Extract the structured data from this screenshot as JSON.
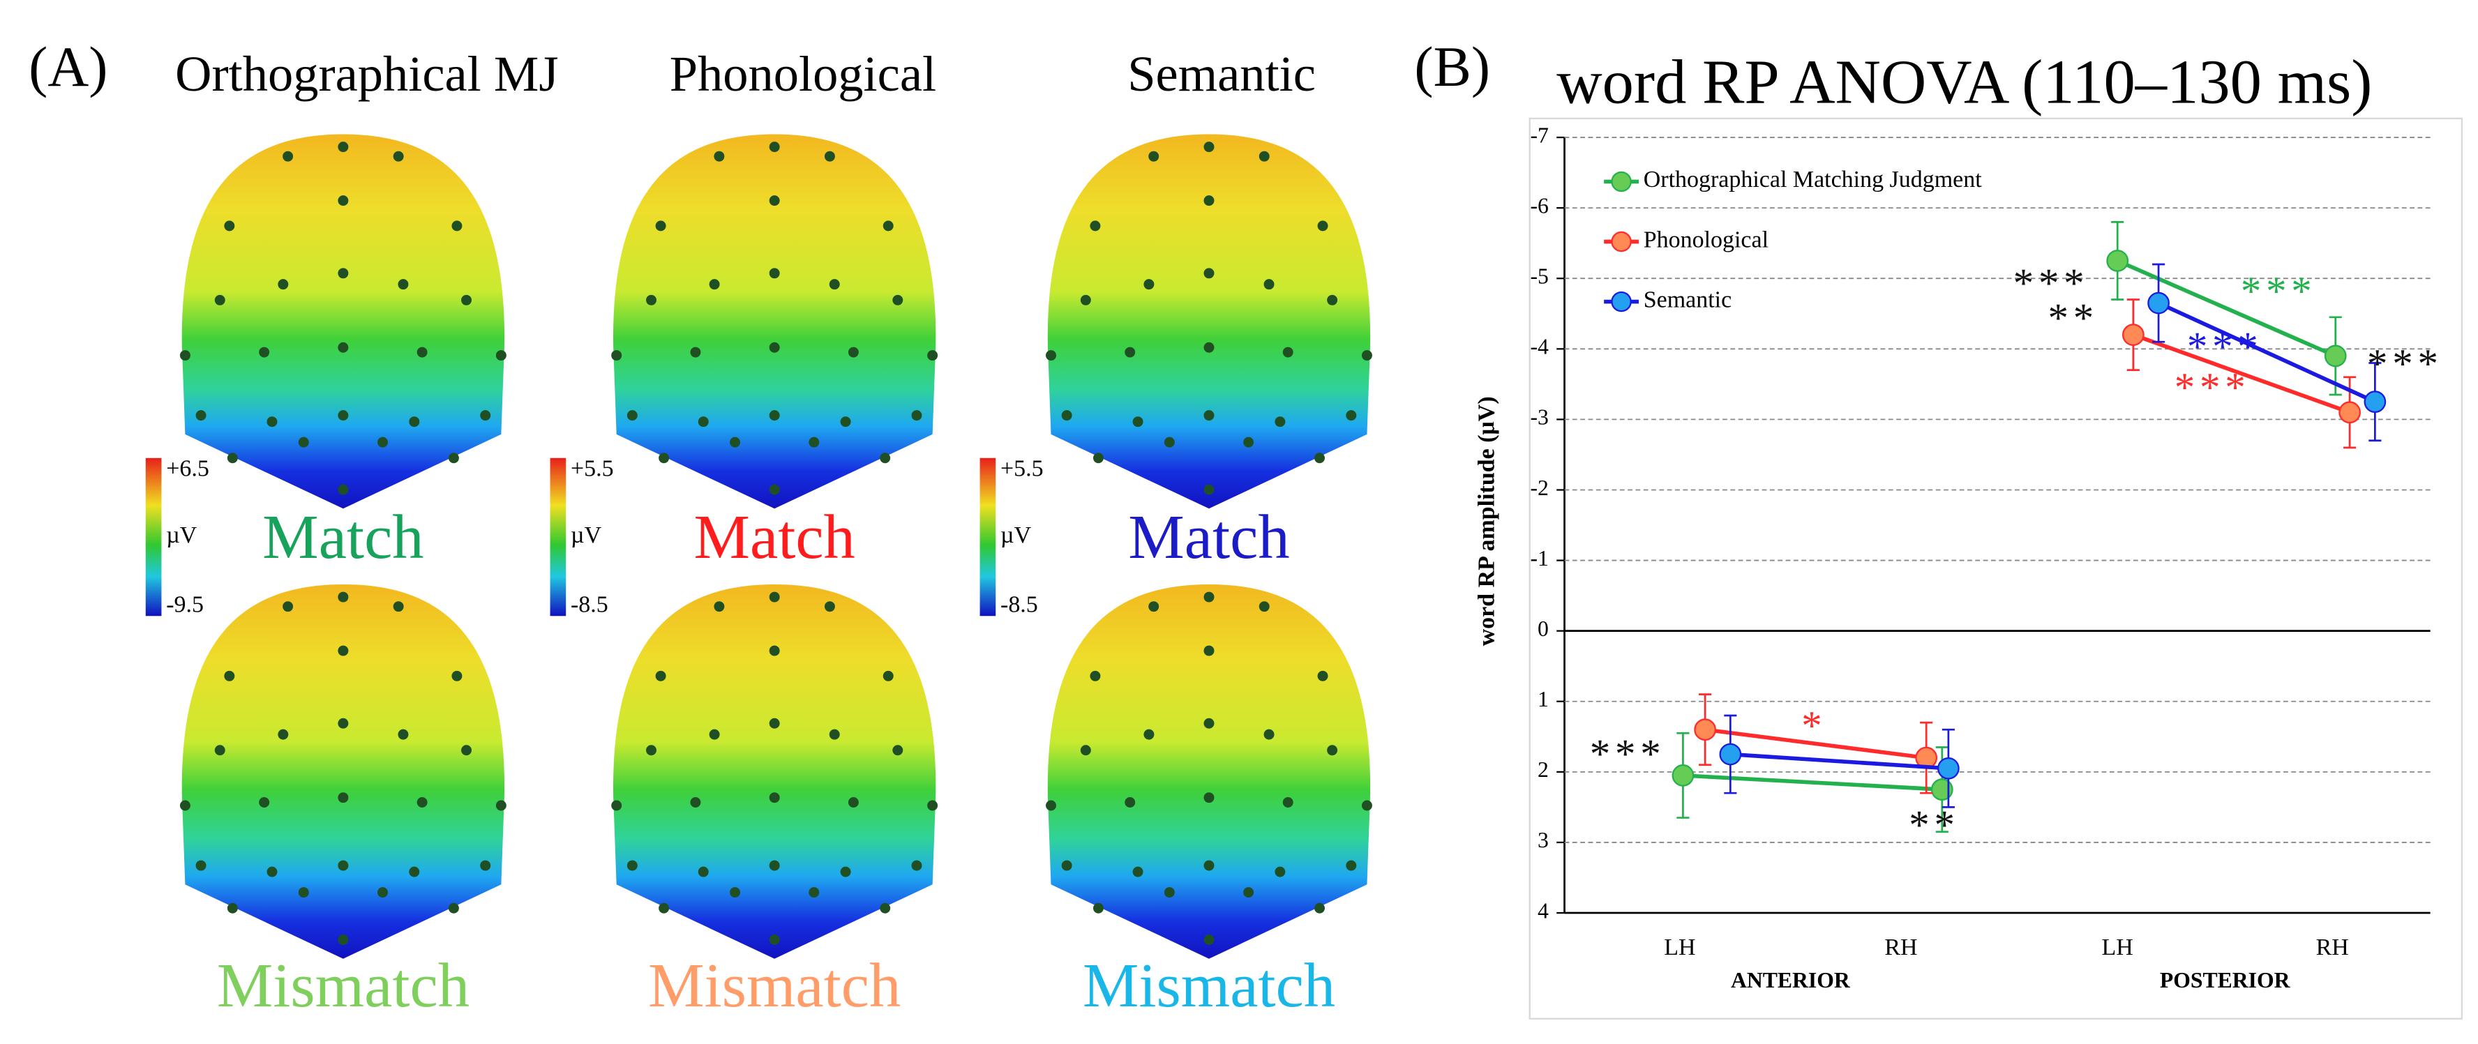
{
  "panel_a": {
    "label": "(A)",
    "columns": [
      {
        "title": "Orthographical MJ",
        "colorbar": [
          "+6.5",
          "µV",
          "-9.5"
        ],
        "match": "Match",
        "match_color": "#17a35c",
        "mismatch": "Mismatch",
        "mismatch_color": "#7fcf5c"
      },
      {
        "title": "Phonological",
        "colorbar": [
          "+5.5",
          "µV",
          "-8.5"
        ],
        "match": "Match",
        "match_color": "#ff1c1c",
        "mismatch": "Mismatch",
        "mismatch_color": "#ff9c68"
      },
      {
        "title": "Semantic",
        "colorbar": [
          "+5.5",
          "µV",
          "-8.5"
        ],
        "match": "Match",
        "match_color": "#1b1bc8",
        "mismatch": "Mismatch",
        "mismatch_color": "#19b6e8"
      }
    ]
  },
  "chart_data": {
    "type": "line",
    "panel_label": "(B)",
    "title": "word RP ANOVA (110–130 ms)",
    "y_label": "word RP amplitude  (μV)",
    "categories": [
      "LH",
      "RH",
      "LH",
      "RH"
    ],
    "groups": [
      {
        "name": "ANTERIOR",
        "categories": [
          0,
          1
        ]
      },
      {
        "name": "POSTERIOR",
        "categories": [
          2,
          3
        ]
      }
    ],
    "series": [
      {
        "name": "Orthographical Matching Judgment",
        "color": "#22b14c",
        "marker_color": "#66cc55",
        "values": [
          2.05,
          2.25,
          -5.25,
          -3.9
        ],
        "errors": [
          0.6,
          0.6,
          0.55,
          0.55
        ]
      },
      {
        "name": "Phonological",
        "color": "#ff2a2a",
        "marker_color": "#ff8a55",
        "values": [
          1.4,
          1.8,
          -4.2,
          -3.1
        ],
        "errors": [
          0.5,
          0.5,
          0.5,
          0.5
        ]
      },
      {
        "name": "Semantic",
        "color": "#1a1ae0",
        "marker_color": "#25a0f0",
        "values": [
          1.75,
          1.95,
          -4.65,
          -3.25
        ],
        "errors": [
          0.55,
          0.55,
          0.55,
          0.55
        ]
      }
    ],
    "ylim": [
      -7,
      4
    ],
    "y_inverted": true,
    "yticks": [
      -7,
      -6,
      -5,
      -4,
      -3,
      -2,
      -1,
      0,
      1,
      2,
      3,
      4
    ],
    "grid": true,
    "legend": "top-left",
    "annotations": [
      {
        "text": "***",
        "color": "#111111"
      },
      {
        "text": "**",
        "color": "#111111"
      },
      {
        "text": "***",
        "color": "#22b14c"
      },
      {
        "text": "***",
        "color": "#1a1ae0"
      },
      {
        "text": "***",
        "color": "#ff2a2a"
      },
      {
        "text": "***",
        "color": "#111111"
      },
      {
        "text": "*",
        "color": "#ff2a2a"
      },
      {
        "text": "***",
        "color": "#111111"
      },
      {
        "text": "**",
        "color": "#111111"
      }
    ]
  }
}
